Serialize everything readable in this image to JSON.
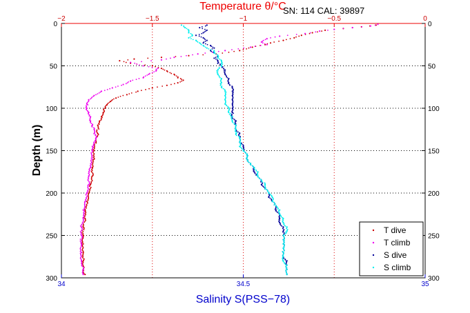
{
  "chart_data": {
    "type": "scatter",
    "title": "Temperature θ/°C",
    "annotation": "SN: 114  CAL: 39897",
    "ylabel": "Depth (m)",
    "xlabel_bottom": "Salinity S(PSS−78)",
    "xlabel_top": "Temperature θ/°C",
    "y": {
      "label": "Depth (m)",
      "range": [
        0,
        300
      ],
      "reversed": true,
      "ticks": [
        0,
        50,
        100,
        150,
        200,
        250,
        300
      ],
      "tick_labels": [
        "0",
        "50",
        "100",
        "150",
        "200",
        "250",
        "300"
      ]
    },
    "x_bottom": {
      "label": "Salinity S(PSS−78)",
      "range": [
        34,
        35
      ],
      "ticks": [
        34,
        34.5,
        35
      ],
      "tick_labels": [
        "34",
        "34.5",
        "35"
      ]
    },
    "x_top": {
      "label": "Temperature θ/°C",
      "range": [
        -2,
        0
      ],
      "ticks": [
        -2,
        -1.5,
        -1,
        -0.5,
        0
      ],
      "tick_labels": [
        "−2",
        "−1.5",
        "−1",
        "−0.5",
        "0"
      ]
    },
    "grid": true,
    "legend_position": "bottom-right",
    "series": [
      {
        "name": "T dive",
        "axis": "temperature",
        "color": "#cc0000",
        "points": [
          [
            -0.27,
            2
          ],
          [
            -0.35,
            4
          ],
          [
            -0.45,
            6
          ],
          [
            -0.55,
            8
          ],
          [
            -0.62,
            11
          ],
          [
            -0.68,
            14
          ],
          [
            -0.72,
            17
          ],
          [
            -0.78,
            20
          ],
          [
            -0.85,
            23
          ],
          [
            -0.88,
            25
          ],
          [
            -0.95,
            28
          ],
          [
            -1.02,
            32
          ],
          [
            -1.15,
            36
          ],
          [
            -1.3,
            38
          ],
          [
            -1.45,
            40
          ],
          [
            -1.6,
            42
          ],
          [
            -1.68,
            44
          ],
          [
            -1.62,
            47
          ],
          [
            -1.5,
            50
          ],
          [
            -1.45,
            53
          ],
          [
            -1.42,
            56
          ],
          [
            -1.38,
            60
          ],
          [
            -1.36,
            64
          ],
          [
            -1.33,
            67
          ],
          [
            -1.36,
            70
          ],
          [
            -1.42,
            73
          ],
          [
            -1.5,
            76
          ],
          [
            -1.58,
            80
          ],
          [
            -1.64,
            84
          ],
          [
            -1.7,
            88
          ],
          [
            -1.73,
            92
          ],
          [
            -1.75,
            96
          ],
          [
            -1.76,
            100
          ],
          [
            -1.77,
            105
          ],
          [
            -1.78,
            110
          ],
          [
            -1.79,
            115
          ],
          [
            -1.8,
            120
          ],
          [
            -1.8,
            130
          ],
          [
            -1.81,
            140
          ],
          [
            -1.82,
            150
          ],
          [
            -1.82,
            160
          ],
          [
            -1.83,
            170
          ],
          [
            -1.83,
            180
          ],
          [
            -1.84,
            190
          ],
          [
            -1.85,
            200
          ],
          [
            -1.86,
            210
          ],
          [
            -1.87,
            220
          ],
          [
            -1.87,
            230
          ],
          [
            -1.88,
            240
          ],
          [
            -1.88,
            250
          ],
          [
            -1.88,
            260
          ],
          [
            -1.88,
            270
          ],
          [
            -1.88,
            280
          ],
          [
            -1.88,
            290
          ],
          [
            -1.87,
            296
          ]
        ]
      },
      {
        "name": "T climb",
        "axis": "temperature",
        "color": "#ee00ee",
        "points": [
          [
            -0.26,
            1
          ],
          [
            -0.3,
            3
          ],
          [
            -0.4,
            5
          ],
          [
            -0.5,
            7
          ],
          [
            -0.58,
            9
          ],
          [
            -0.66,
            12
          ],
          [
            -0.8,
            15
          ],
          [
            -0.87,
            18
          ],
          [
            -0.9,
            22
          ],
          [
            -0.87,
            25
          ],
          [
            -0.96,
            28
          ],
          [
            -1.1,
            32
          ],
          [
            -1.25,
            36
          ],
          [
            -1.38,
            40
          ],
          [
            -1.45,
            43
          ],
          [
            -1.62,
            46
          ],
          [
            -1.55,
            50
          ],
          [
            -1.47,
            53
          ],
          [
            -1.48,
            56
          ],
          [
            -1.52,
            60
          ],
          [
            -1.55,
            64
          ],
          [
            -1.62,
            68
          ],
          [
            -1.66,
            72
          ],
          [
            -1.72,
            76
          ],
          [
            -1.78,
            80
          ],
          [
            -1.82,
            85
          ],
          [
            -1.85,
            90
          ],
          [
            -1.86,
            95
          ],
          [
            -1.86,
            100
          ],
          [
            -1.85,
            105
          ],
          [
            -1.84,
            110
          ],
          [
            -1.84,
            115
          ],
          [
            -1.83,
            120
          ],
          [
            -1.82,
            125
          ],
          [
            -1.82,
            130
          ],
          [
            -1.81,
            135
          ],
          [
            -1.82,
            140
          ],
          [
            -1.83,
            145
          ],
          [
            -1.83,
            150
          ],
          [
            -1.83,
            160
          ],
          [
            -1.84,
            170
          ],
          [
            -1.85,
            180
          ],
          [
            -1.85,
            190
          ],
          [
            -1.86,
            200
          ],
          [
            -1.87,
            210
          ],
          [
            -1.88,
            220
          ],
          [
            -1.88,
            230
          ],
          [
            -1.89,
            240
          ],
          [
            -1.89,
            250
          ],
          [
            -1.89,
            260
          ],
          [
            -1.89,
            270
          ],
          [
            -1.89,
            280
          ],
          [
            -1.88,
            290
          ],
          [
            -1.88,
            296
          ]
        ]
      },
      {
        "name": "S dive",
        "axis": "salinity",
        "color": "#000099",
        "points": [
          [
            34.4,
            2
          ],
          [
            34.38,
            5
          ],
          [
            34.4,
            8
          ],
          [
            34.39,
            11
          ],
          [
            34.37,
            14
          ],
          [
            34.39,
            17
          ],
          [
            34.4,
            20
          ],
          [
            34.39,
            23
          ],
          [
            34.41,
            26
          ],
          [
            34.42,
            29
          ],
          [
            34.41,
            32
          ],
          [
            34.42,
            35
          ],
          [
            34.43,
            38
          ],
          [
            34.42,
            41
          ],
          [
            34.43,
            44
          ],
          [
            34.43,
            47
          ],
          [
            34.44,
            50
          ],
          [
            34.45,
            55
          ],
          [
            34.45,
            60
          ],
          [
            34.46,
            65
          ],
          [
            34.46,
            70
          ],
          [
            34.47,
            75
          ],
          [
            34.47,
            80
          ],
          [
            34.47,
            85
          ],
          [
            34.47,
            90
          ],
          [
            34.47,
            95
          ],
          [
            34.47,
            100
          ],
          [
            34.47,
            105
          ],
          [
            34.47,
            110
          ],
          [
            34.48,
            115
          ],
          [
            34.48,
            120
          ],
          [
            34.48,
            125
          ],
          [
            34.49,
            130
          ],
          [
            34.49,
            135
          ],
          [
            34.49,
            140
          ],
          [
            34.5,
            145
          ],
          [
            34.5,
            150
          ],
          [
            34.51,
            155
          ],
          [
            34.51,
            160
          ],
          [
            34.52,
            165
          ],
          [
            34.53,
            170
          ],
          [
            34.53,
            175
          ],
          [
            34.54,
            180
          ],
          [
            34.55,
            185
          ],
          [
            34.55,
            190
          ],
          [
            34.56,
            195
          ],
          [
            34.57,
            200
          ],
          [
            34.57,
            205
          ],
          [
            34.58,
            210
          ],
          [
            34.59,
            215
          ],
          [
            34.59,
            220
          ],
          [
            34.6,
            225
          ],
          [
            34.6,
            230
          ],
          [
            34.6,
            235
          ],
          [
            34.61,
            240
          ],
          [
            34.61,
            245
          ],
          [
            34.61,
            250
          ],
          [
            34.61,
            255
          ],
          [
            34.61,
            260
          ],
          [
            34.61,
            265
          ],
          [
            34.61,
            270
          ],
          [
            34.61,
            275
          ],
          [
            34.62,
            280
          ],
          [
            34.62,
            285
          ],
          [
            34.62,
            290
          ],
          [
            34.62,
            296
          ]
        ]
      },
      {
        "name": "S climb",
        "axis": "salinity",
        "color": "#00eeee",
        "points": [
          [
            34.33,
            2
          ],
          [
            34.34,
            5
          ],
          [
            34.35,
            8
          ],
          [
            34.35,
            11
          ],
          [
            34.36,
            14
          ],
          [
            34.35,
            17
          ],
          [
            34.37,
            20
          ],
          [
            34.38,
            23
          ],
          [
            34.39,
            26
          ],
          [
            34.4,
            29
          ],
          [
            34.42,
            32
          ],
          [
            34.42,
            35
          ],
          [
            34.43,
            38
          ],
          [
            34.43,
            41
          ],
          [
            34.44,
            44
          ],
          [
            34.44,
            47
          ],
          [
            34.44,
            50
          ],
          [
            34.43,
            55
          ],
          [
            34.43,
            60
          ],
          [
            34.44,
            65
          ],
          [
            34.44,
            70
          ],
          [
            34.44,
            75
          ],
          [
            34.45,
            80
          ],
          [
            34.45,
            85
          ],
          [
            34.45,
            90
          ],
          [
            34.45,
            95
          ],
          [
            34.46,
            100
          ],
          [
            34.46,
            105
          ],
          [
            34.47,
            110
          ],
          [
            34.47,
            115
          ],
          [
            34.48,
            120
          ],
          [
            34.48,
            125
          ],
          [
            34.48,
            130
          ],
          [
            34.49,
            135
          ],
          [
            34.49,
            140
          ],
          [
            34.49,
            145
          ],
          [
            34.5,
            150
          ],
          [
            34.51,
            155
          ],
          [
            34.51,
            160
          ],
          [
            34.52,
            165
          ],
          [
            34.53,
            170
          ],
          [
            34.54,
            175
          ],
          [
            34.54,
            180
          ],
          [
            34.55,
            185
          ],
          [
            34.56,
            190
          ],
          [
            34.56,
            195
          ],
          [
            34.57,
            200
          ],
          [
            34.58,
            205
          ],
          [
            34.58,
            210
          ],
          [
            34.59,
            215
          ],
          [
            34.6,
            220
          ],
          [
            34.6,
            225
          ],
          [
            34.61,
            230
          ],
          [
            34.61,
            235
          ],
          [
            34.62,
            240
          ],
          [
            34.62,
            245
          ],
          [
            34.61,
            250
          ],
          [
            34.61,
            255
          ],
          [
            34.61,
            260
          ],
          [
            34.61,
            265
          ],
          [
            34.61,
            270
          ],
          [
            34.61,
            275
          ],
          [
            34.61,
            280
          ],
          [
            34.62,
            285
          ],
          [
            34.62,
            290
          ],
          [
            34.62,
            296
          ]
        ]
      }
    ]
  }
}
